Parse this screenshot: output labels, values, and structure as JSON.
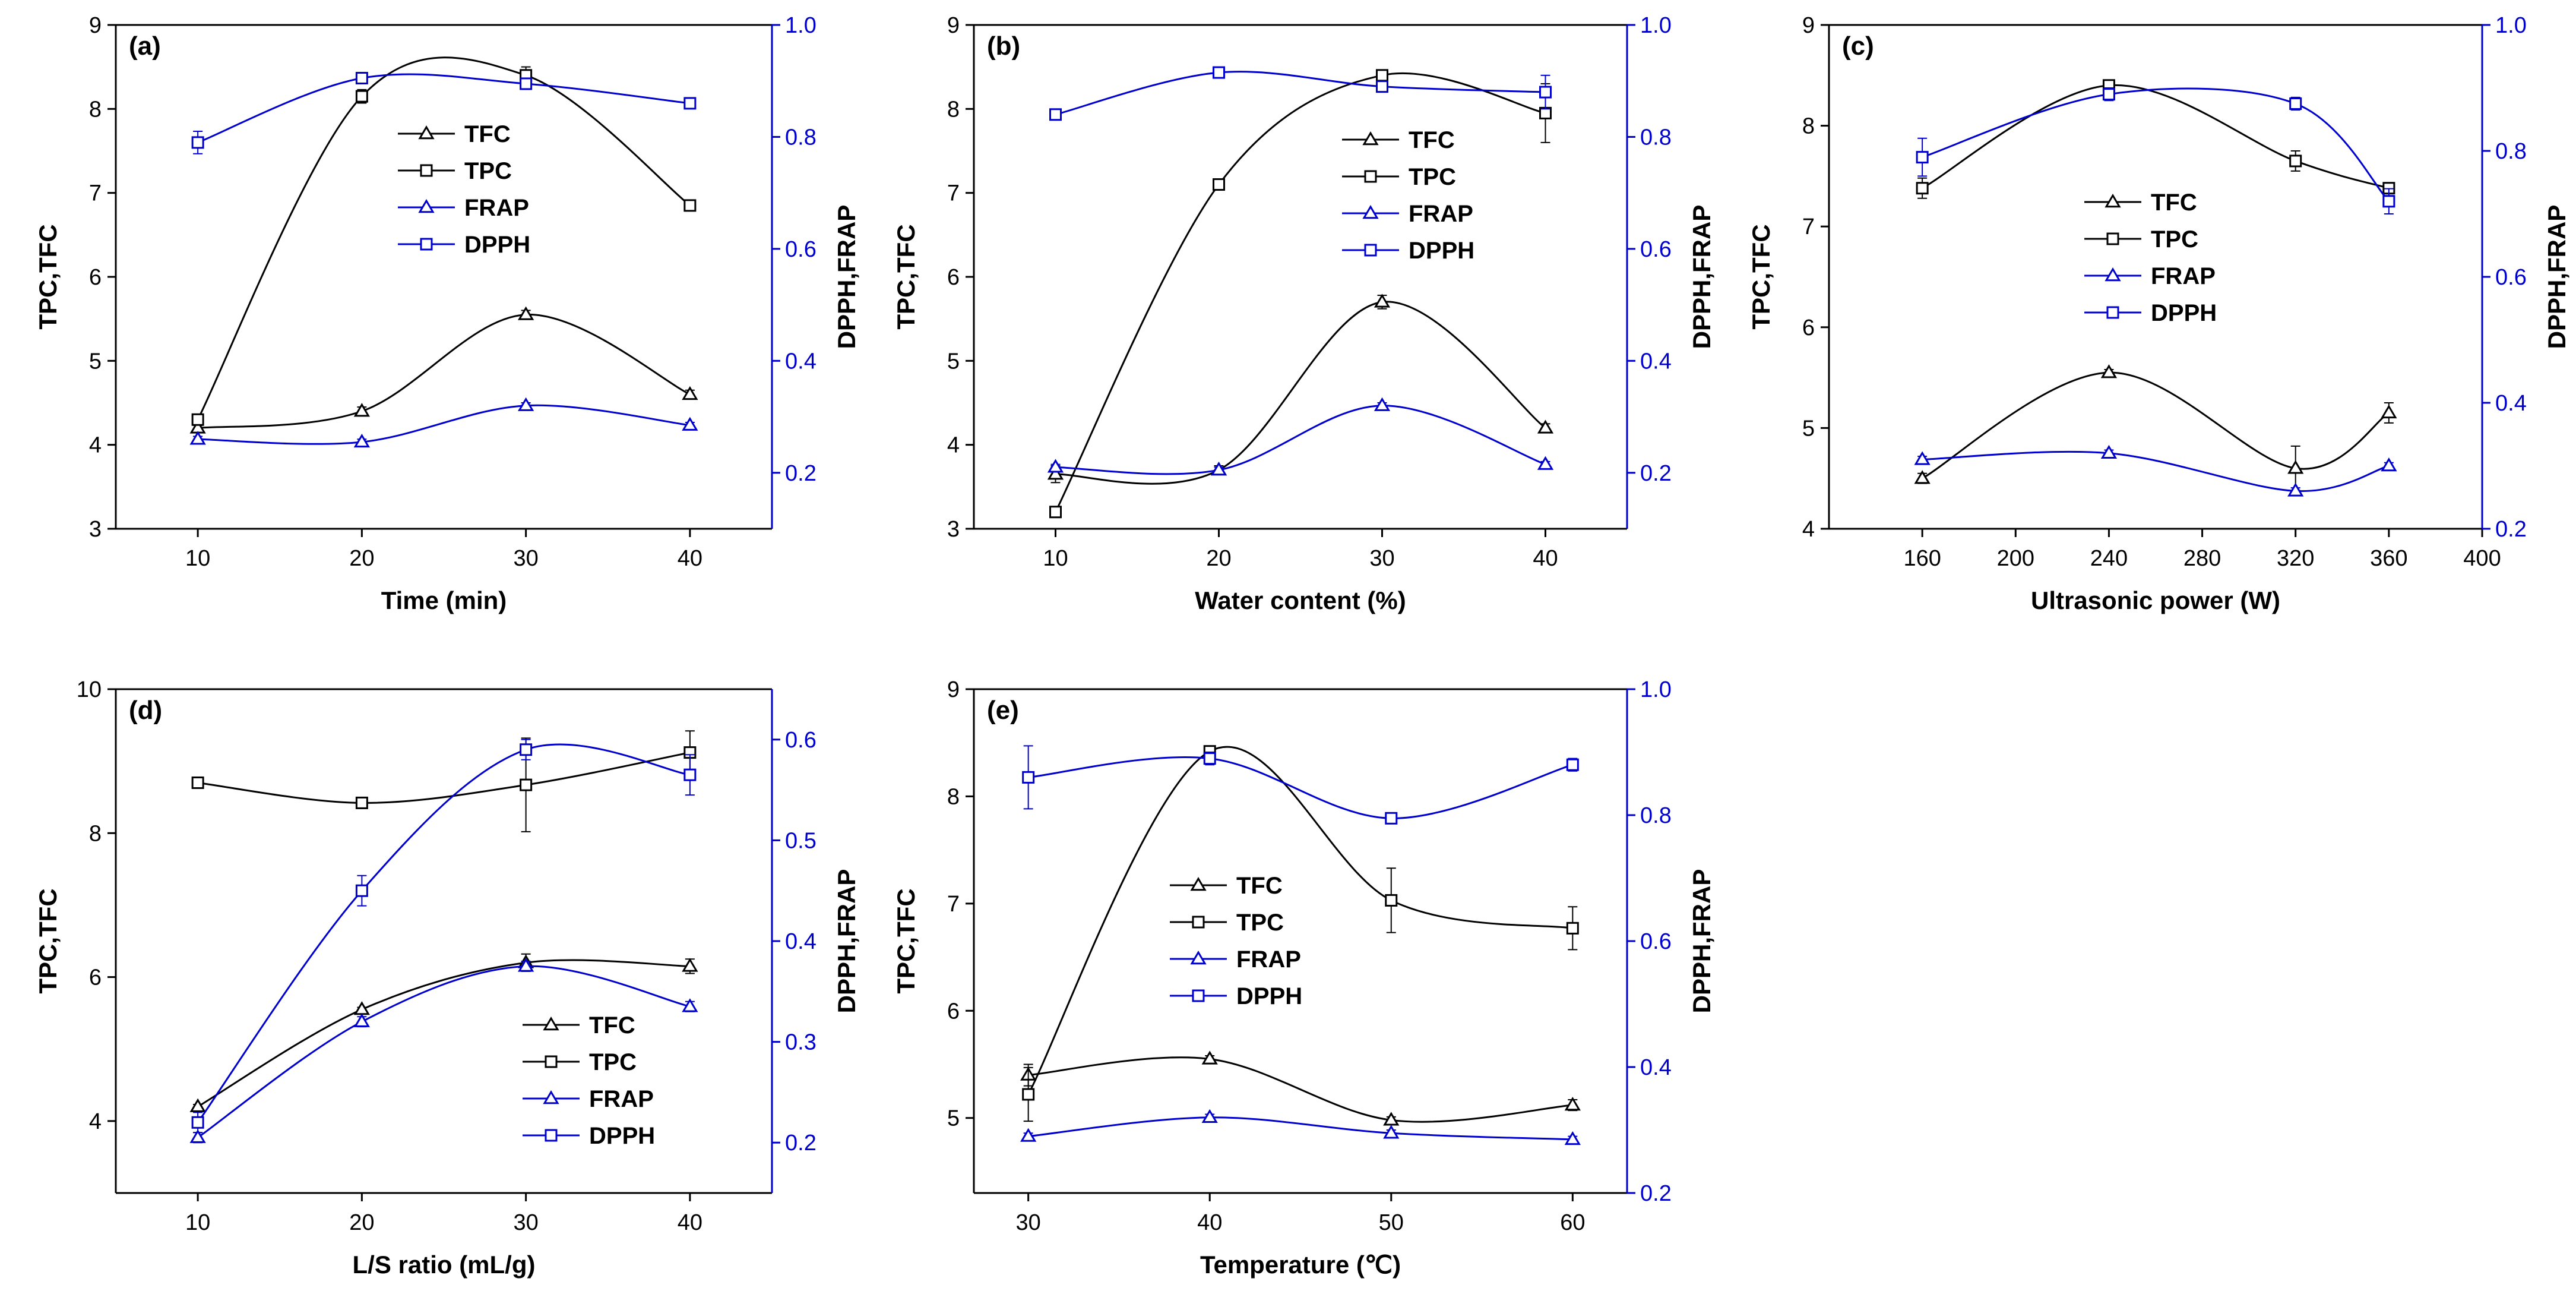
{
  "chart_data": [
    {
      "type": "line",
      "panel_label": "(a)",
      "xlabel": "Time (min)",
      "ylabel_left": "TPC,TFC",
      "ylabel_right": "DPPH,FRAP",
      "xlim": [
        5,
        45
      ],
      "x_ticks": [
        10,
        20,
        30,
        40
      ],
      "x_tick_labels": [
        "10",
        "20",
        "30",
        "40"
      ],
      "ylim_left": [
        3,
        9
      ],
      "y_ticks_left": [
        "3",
        "4",
        "5",
        "6",
        "7",
        "8",
        "9"
      ],
      "ylim_right": [
        0.1,
        1.0
      ],
      "y_ticks_right": [
        "0.2",
        "0.4",
        "0.6",
        "0.8",
        "1.0"
      ],
      "legend": [
        "TFC",
        "TPC",
        "FRAP",
        "DPPH"
      ],
      "x": [
        10,
        20,
        30,
        40
      ],
      "series": [
        {
          "name": "TFC",
          "axis": "left",
          "color": "#000000",
          "marker": "triangle",
          "values": [
            4.2,
            4.4,
            5.55,
            4.6
          ],
          "errors": [
            0.03,
            0.05,
            0.05,
            0.05
          ]
        },
        {
          "name": "TPC",
          "axis": "left",
          "color": "#000000",
          "marker": "square",
          "values": [
            4.3,
            8.15,
            8.4,
            6.85
          ],
          "errors": [
            0.05,
            0.08,
            0.1,
            0.05
          ]
        },
        {
          "name": "FRAP",
          "axis": "right",
          "color": "#0000cc",
          "marker": "triangle",
          "values": [
            0.26,
            0.255,
            0.32,
            0.285
          ],
          "errors": [
            0.005,
            0.005,
            0.005,
            0.005
          ]
        },
        {
          "name": "DPPH",
          "axis": "right",
          "color": "#0000cc",
          "marker": "square",
          "values": [
            0.79,
            0.905,
            0.895,
            0.86
          ],
          "errors": [
            0.02,
            0.01,
            0.01,
            0.005
          ]
        }
      ]
    },
    {
      "type": "line",
      "panel_label": "(b)",
      "xlabel": "Water content (%)",
      "ylabel_left": "TPC,TFC",
      "ylabel_right": "DPPH,FRAP",
      "xlim": [
        5,
        45
      ],
      "x_ticks": [
        10,
        20,
        30,
        40
      ],
      "x_tick_labels": [
        "10",
        "20",
        "30",
        "40"
      ],
      "ylim_left": [
        3,
        9
      ],
      "y_ticks_left": [
        "3",
        "4",
        "5",
        "6",
        "7",
        "8",
        "9"
      ],
      "ylim_right": [
        0.1,
        1.0
      ],
      "y_ticks_right": [
        "0.2",
        "0.4",
        "0.6",
        "0.8",
        "1.0"
      ],
      "legend": [
        "TFC",
        "TPC",
        "FRAP",
        "DPPH"
      ],
      "x": [
        10,
        20,
        30,
        40
      ],
      "series": [
        {
          "name": "TFC",
          "axis": "left",
          "color": "#000000",
          "marker": "triangle",
          "values": [
            3.65,
            3.7,
            5.7,
            4.2
          ],
          "errors": [
            0.1,
            0.05,
            0.08,
            0.05
          ]
        },
        {
          "name": "TPC",
          "axis": "left",
          "color": "#000000",
          "marker": "square",
          "values": [
            3.2,
            7.1,
            8.4,
            7.95
          ],
          "errors": [
            0.03,
            0.03,
            0.05,
            0.35
          ]
        },
        {
          "name": "FRAP",
          "axis": "right",
          "color": "#0000cc",
          "marker": "triangle",
          "values": [
            0.21,
            0.205,
            0.32,
            0.215
          ],
          "errors": [
            0.005,
            0.005,
            0.005,
            0.005
          ]
        },
        {
          "name": "DPPH",
          "axis": "right",
          "color": "#0000cc",
          "marker": "square",
          "values": [
            0.84,
            0.915,
            0.89,
            0.88
          ],
          "errors": [
            0.005,
            0.005,
            0.01,
            0.03
          ]
        }
      ]
    },
    {
      "type": "line",
      "panel_label": "(c)",
      "xlabel": "Ultrasonic power (W)",
      "ylabel_left": "TPC,TFC",
      "ylabel_right": "DPPH,FRAP",
      "xlim": [
        120,
        400
      ],
      "x_ticks": [
        160,
        200,
        240,
        280,
        320,
        360,
        400
      ],
      "x_tick_labels": [
        "160",
        "200",
        "240",
        "280",
        "320",
        "360",
        "400"
      ],
      "ylim_left": [
        4,
        9
      ],
      "y_ticks_left": [
        "4",
        "5",
        "6",
        "7",
        "8",
        "9"
      ],
      "ylim_right": [
        0.2,
        1.0
      ],
      "y_ticks_right": [
        "0.2",
        "0.4",
        "0.6",
        "0.8",
        "1.0"
      ],
      "legend": [
        "TFC",
        "TPC",
        "FRAP",
        "DPPH"
      ],
      "x": [
        160,
        240,
        320,
        360
      ],
      "series": [
        {
          "name": "TFC",
          "axis": "left",
          "color": "#000000",
          "marker": "triangle",
          "values": [
            4.5,
            5.55,
            4.6,
            5.15
          ],
          "errors": [
            0.05,
            0.03,
            0.22,
            0.1
          ]
        },
        {
          "name": "TPC",
          "axis": "left",
          "color": "#000000",
          "marker": "square",
          "values": [
            7.38,
            8.4,
            7.65,
            7.38
          ],
          "errors": [
            0.1,
            0.05,
            0.1,
            0.05
          ]
        },
        {
          "name": "FRAP",
          "axis": "right",
          "color": "#0000cc",
          "marker": "triangle",
          "values": [
            0.31,
            0.32,
            0.26,
            0.3
          ],
          "errors": [
            0.005,
            0.005,
            0.005,
            0.005
          ]
        },
        {
          "name": "DPPH",
          "axis": "right",
          "color": "#0000cc",
          "marker": "square",
          "values": [
            0.79,
            0.89,
            0.875,
            0.72
          ],
          "errors": [
            0.03,
            0.01,
            0.01,
            0.02
          ]
        }
      ]
    },
    {
      "type": "line",
      "panel_label": "(d)",
      "xlabel": "L/S ratio (mL/g)",
      "ylabel_left": "TPC,TFC",
      "ylabel_right": "DPPH,FRAP",
      "xlim": [
        5,
        45
      ],
      "x_ticks": [
        10,
        20,
        30,
        40
      ],
      "x_tick_labels": [
        "10",
        "20",
        "30",
        "40"
      ],
      "ylim_left": [
        3,
        10
      ],
      "y_ticks_left": [
        "4",
        "6",
        "8",
        "10"
      ],
      "ylim_right": [
        0.15,
        0.65
      ],
      "y_ticks_right": [
        "0.2",
        "0.3",
        "0.4",
        "0.5",
        "0.6"
      ],
      "legend": [
        "TFC",
        "TPC",
        "FRAP",
        "DPPH"
      ],
      "x": [
        10,
        20,
        30,
        40
      ],
      "series": [
        {
          "name": "TFC",
          "axis": "left",
          "color": "#000000",
          "marker": "triangle",
          "values": [
            4.2,
            5.55,
            6.2,
            6.15
          ],
          "errors": [
            0.03,
            0.03,
            0.12,
            0.1
          ]
        },
        {
          "name": "TPC",
          "axis": "left",
          "color": "#000000",
          "marker": "square",
          "values": [
            8.7,
            8.42,
            8.67,
            9.12
          ],
          "errors": [
            0.03,
            0.03,
            0.65,
            0.3
          ]
        },
        {
          "name": "FRAP",
          "axis": "right",
          "color": "#0000cc",
          "marker": "triangle",
          "values": [
            0.205,
            0.32,
            0.375,
            0.335
          ],
          "errors": [
            0.005,
            0.005,
            0.005,
            0.005
          ]
        },
        {
          "name": "DPPH",
          "axis": "right",
          "color": "#0000cc",
          "marker": "square",
          "values": [
            0.22,
            0.45,
            0.59,
            0.565
          ],
          "errors": [
            0.01,
            0.015,
            0.01,
            0.02
          ]
        }
      ]
    },
    {
      "type": "line",
      "panel_label": "(e)",
      "xlabel": "Temperature (℃)",
      "ylabel_left": "TPC,TFC",
      "ylabel_right": "DPPH,FRAP",
      "xlim": [
        27,
        63
      ],
      "x_ticks": [
        30,
        40,
        50,
        60
      ],
      "x_tick_labels": [
        "30",
        "40",
        "50",
        "60"
      ],
      "ylim_left": [
        4.3,
        9
      ],
      "y_ticks_left": [
        "5",
        "6",
        "7",
        "8",
        "9"
      ],
      "ylim_right": [
        0.2,
        1.0
      ],
      "y_ticks_right": [
        "0.2",
        "0.4",
        "0.6",
        "0.8",
        "1.0"
      ],
      "legend": [
        "TFC",
        "TPC",
        "FRAP",
        "DPPH"
      ],
      "x": [
        30,
        40,
        50,
        60
      ],
      "series": [
        {
          "name": "TFC",
          "axis": "left",
          "color": "#000000",
          "marker": "triangle",
          "values": [
            5.4,
            5.55,
            4.98,
            5.12
          ],
          "errors": [
            0.1,
            0.03,
            0.03,
            0.05
          ]
        },
        {
          "name": "TPC",
          "axis": "left",
          "color": "#000000",
          "marker": "square",
          "values": [
            5.22,
            8.42,
            7.03,
            6.77
          ],
          "errors": [
            0.25,
            0.05,
            0.3,
            0.2
          ]
        },
        {
          "name": "FRAP",
          "axis": "right",
          "color": "#0000cc",
          "marker": "triangle",
          "values": [
            0.29,
            0.32,
            0.295,
            0.285
          ],
          "errors": [
            0.005,
            0.005,
            0.005,
            0.005
          ]
        },
        {
          "name": "DPPH",
          "axis": "right",
          "color": "#0000cc",
          "marker": "square",
          "values": [
            0.86,
            0.89,
            0.795,
            0.88
          ],
          "errors": [
            0.05,
            0.01,
            0.005,
            0.01
          ]
        }
      ]
    }
  ]
}
